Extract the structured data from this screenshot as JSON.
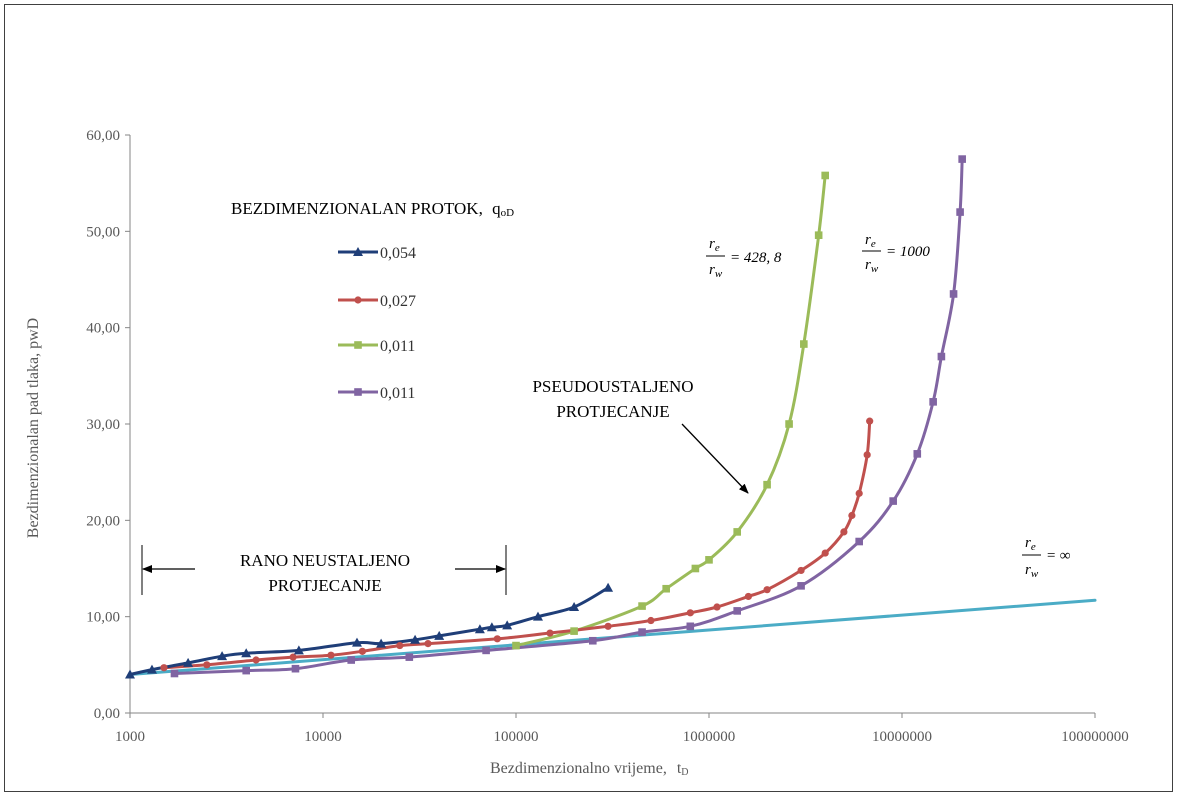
{
  "chart_data": {
    "type": "line",
    "title": "",
    "xlabel_main": "Bezdimenzionalno vrijeme,",
    "xlabel_sym": "t",
    "xlabel_sub": "D",
    "ylabel": "Bezdimenzionalan pad tlaka, pwD",
    "xscale": "log",
    "xlim": [
      1000,
      100000000
    ],
    "ylim": [
      0,
      60
    ],
    "x_ticks": [
      "1000",
      "10000",
      "100000",
      "1000000",
      "10000000",
      "100000000"
    ],
    "y_ticks": [
      "0,00",
      "10,00",
      "20,00",
      "30,00",
      "40,00",
      "50,00",
      "60,00"
    ],
    "grid": false,
    "legend_title_main": "BEZDIMENZIONALAN PROTOK,",
    "legend_title_sym": "q",
    "legend_title_sub": "oD",
    "legend_placement": "top-left",
    "series": [
      {
        "name": "0,054",
        "color": "#1F3E78",
        "marker": "triangle",
        "x": [
          1000,
          1300,
          2000,
          3000,
          4000,
          7500,
          15000,
          20000,
          30000,
          40000,
          65000,
          75000,
          90000,
          130000,
          200000,
          300000
        ],
        "y": [
          4.0,
          4.5,
          5.2,
          5.9,
          6.2,
          6.5,
          7.3,
          7.2,
          7.6,
          8.0,
          8.7,
          8.9,
          9.1,
          10.0,
          11.0,
          13.0
        ]
      },
      {
        "name": "0,027",
        "color": "#C0504D",
        "marker": "circle",
        "x": [
          1500,
          2500,
          4500,
          7000,
          11000,
          16000,
          25000,
          35000,
          80000,
          150000,
          300000,
          500000,
          800000,
          1100000,
          1600000,
          2000000,
          3000000,
          4000000,
          5000000,
          5500000,
          6000000,
          6600000,
          6800000
        ],
        "y": [
          4.7,
          5.0,
          5.5,
          5.8,
          6.0,
          6.4,
          7.0,
          7.2,
          7.7,
          8.3,
          9.0,
          9.6,
          10.4,
          11.0,
          12.1,
          12.8,
          14.8,
          16.6,
          18.8,
          20.5,
          22.8,
          26.8,
          30.3
        ]
      },
      {
        "name": "0,011",
        "color": "#9BBB59",
        "marker": "square",
        "x": [
          100000,
          200000,
          450000,
          600000,
          850000,
          1000000,
          1400000,
          2000000,
          2600000,
          3100000,
          3700000,
          4000000
        ],
        "y": [
          7.0,
          8.5,
          11.1,
          12.9,
          15.0,
          15.9,
          18.8,
          23.7,
          30.0,
          38.3,
          49.6,
          55.8
        ]
      },
      {
        "name": "0,011",
        "color": "#8064A2",
        "marker": "square",
        "x": [
          1700,
          4000,
          7200,
          14000,
          28000,
          70000,
          250000,
          450000,
          800000,
          1400000,
          3000000,
          6000000,
          9000000,
          12000000,
          14500000,
          16000000,
          18500000,
          20000000,
          20500000
        ],
        "y": [
          4.1,
          4.4,
          4.6,
          5.5,
          5.8,
          6.5,
          7.5,
          8.4,
          9.0,
          10.6,
          13.2,
          17.8,
          22.0,
          26.9,
          32.3,
          37.0,
          43.5,
          52.0,
          57.5
        ]
      },
      {
        "name": "",
        "color": "#4BACC6",
        "marker": "none",
        "x": [
          1000,
          100000000
        ],
        "y": [
          4.0,
          11.7
        ]
      }
    ]
  },
  "annotations": {
    "pseudo_line1": "PSEUDOUSTALJENO",
    "pseudo_line2": "PROTJECANJE",
    "rano_line1": "RANO NEUSTALJENO",
    "rano_line2": "PROTJECANJE",
    "frac_num": "r",
    "frac_num_sub": "e",
    "frac_den": "r",
    "frac_den_sub": "w",
    "ratio_1_value": "= 428, 8",
    "ratio_2_value": "= 1000",
    "ratio_3_value": "= ∞"
  }
}
